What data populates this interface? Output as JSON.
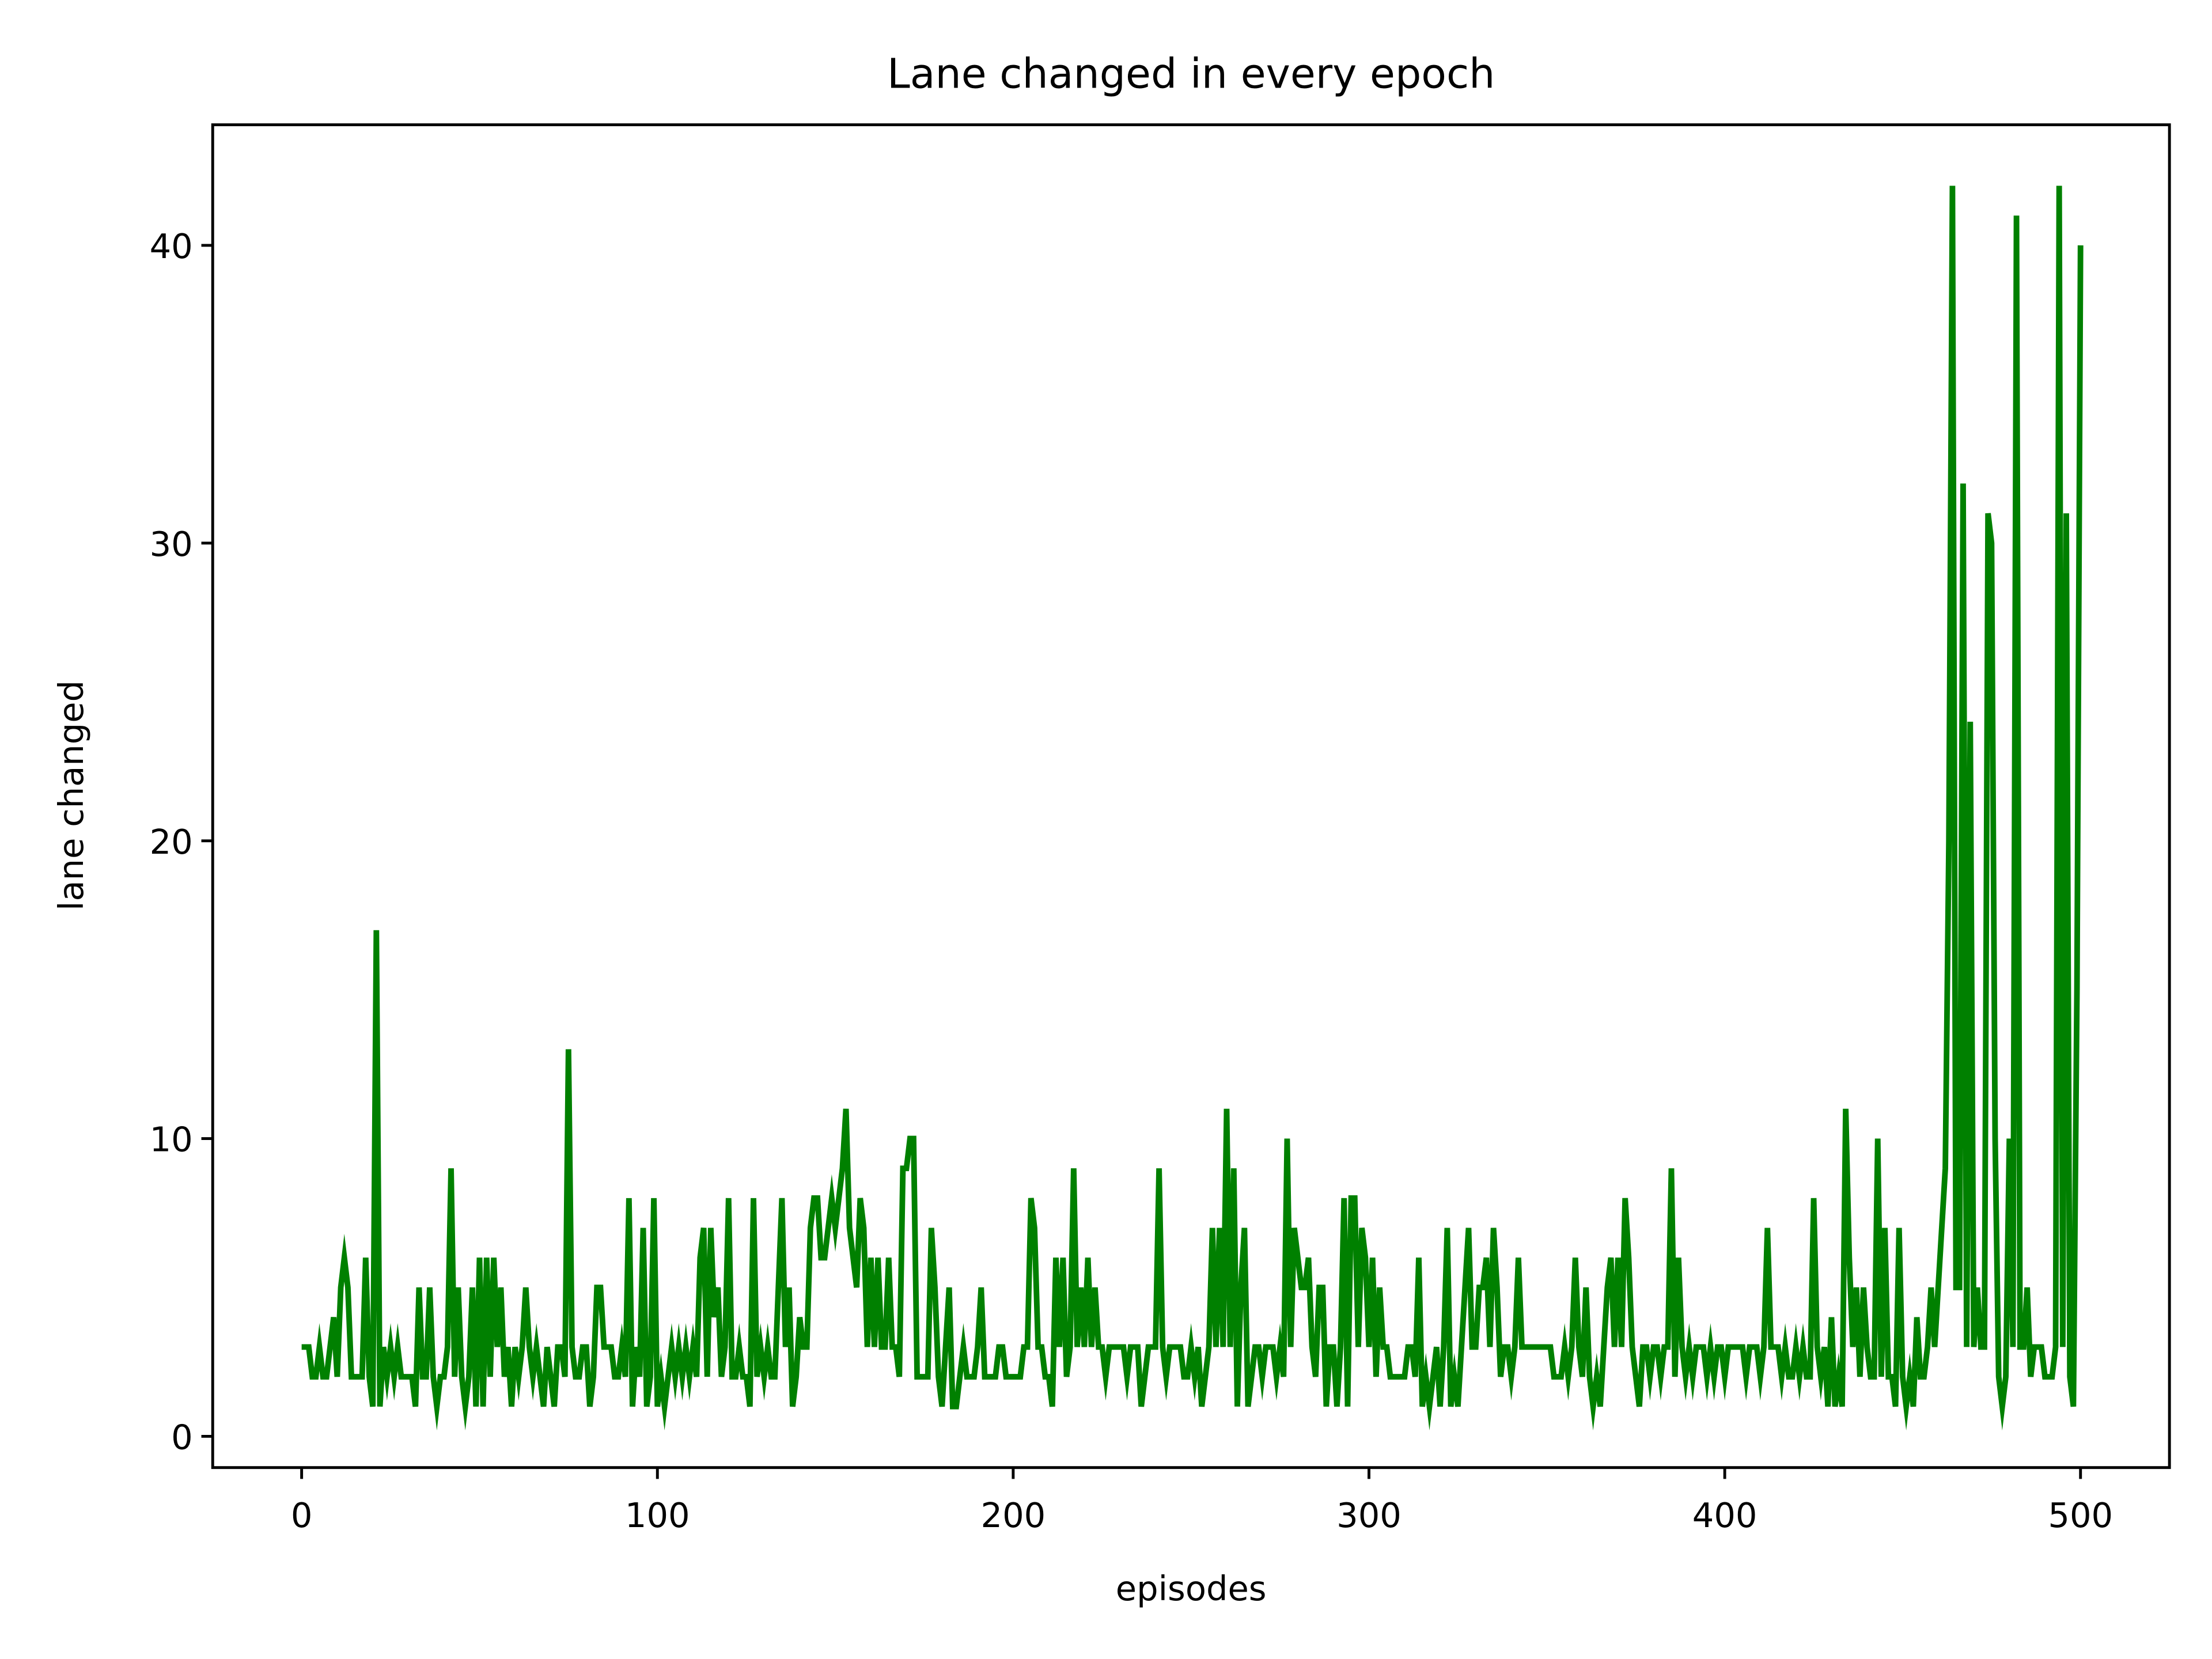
{
  "chart_data": {
    "type": "line",
    "title": "Lane changed in every epoch",
    "x_label": "episodes",
    "y_label": "lane changed",
    "color": "#008000",
    "xlim": [
      -25,
      525
    ],
    "xticks": [
      0,
      100,
      200,
      300,
      400,
      500
    ],
    "ylim": [
      -1.05,
      44.05
    ],
    "yticks": [
      0,
      10,
      20,
      30,
      40
    ],
    "x": [
      0,
      1,
      2,
      3,
      4,
      5,
      6,
      7,
      8,
      9,
      10,
      11,
      12,
      13,
      14,
      15,
      16,
      17,
      18,
      19,
      20,
      21,
      22,
      23,
      24,
      25,
      26,
      27,
      28,
      29,
      30,
      31,
      32,
      33,
      34,
      35,
      36,
      37,
      38,
      39,
      40,
      41,
      42,
      43,
      44,
      45,
      46,
      47,
      48,
      49,
      50,
      51,
      52,
      53,
      54,
      55,
      56,
      57,
      58,
      59,
      60,
      61,
      62,
      63,
      64,
      65,
      66,
      67,
      68,
      69,
      70,
      71,
      72,
      73,
      74,
      75,
      76,
      77,
      78,
      79,
      80,
      81,
      82,
      83,
      84,
      85,
      86,
      87,
      88,
      89,
      90,
      91,
      92,
      93,
      94,
      95,
      96,
      97,
      98,
      99,
      100,
      101,
      102,
      103,
      104,
      105,
      106,
      107,
      108,
      109,
      110,
      111,
      112,
      113,
      114,
      115,
      116,
      117,
      118,
      119,
      120,
      121,
      122,
      123,
      124,
      125,
      126,
      127,
      128,
      129,
      130,
      131,
      132,
      133,
      134,
      135,
      136,
      137,
      138,
      139,
      140,
      141,
      142,
      143,
      144,
      145,
      146,
      147,
      148,
      149,
      150,
      151,
      152,
      153,
      154,
      155,
      156,
      157,
      158,
      159,
      160,
      161,
      162,
      163,
      164,
      165,
      166,
      167,
      168,
      169,
      170,
      171,
      172,
      173,
      174,
      175,
      176,
      177,
      178,
      179,
      180,
      181,
      182,
      183,
      184,
      185,
      186,
      187,
      188,
      189,
      190,
      191,
      192,
      193,
      194,
      195,
      196,
      197,
      198,
      199,
      200,
      201,
      202,
      203,
      204,
      205,
      206,
      207,
      208,
      209,
      210,
      211,
      212,
      213,
      214,
      215,
      216,
      217,
      218,
      219,
      220,
      221,
      222,
      223,
      224,
      225,
      226,
      227,
      228,
      229,
      230,
      231,
      232,
      233,
      234,
      235,
      236,
      237,
      238,
      239,
      240,
      241,
      242,
      243,
      244,
      245,
      246,
      247,
      248,
      249,
      250,
      251,
      252,
      253,
      254,
      255,
      256,
      257,
      258,
      259,
      260,
      261,
      262,
      263,
      264,
      265,
      266,
      267,
      268,
      269,
      270,
      271,
      272,
      273,
      274,
      275,
      276,
      277,
      278,
      279,
      280,
      281,
      282,
      283,
      284,
      285,
      286,
      287,
      288,
      289,
      290,
      291,
      292,
      293,
      294,
      295,
      296,
      297,
      298,
      299,
      300,
      301,
      302,
      303,
      304,
      305,
      306,
      307,
      308,
      309,
      310,
      311,
      312,
      313,
      314,
      315,
      316,
      317,
      318,
      319,
      320,
      321,
      322,
      323,
      324,
      325,
      326,
      327,
      328,
      329,
      330,
      331,
      332,
      333,
      334,
      335,
      336,
      337,
      338,
      339,
      340,
      341,
      342,
      343,
      344,
      345,
      346,
      347,
      348,
      349,
      350,
      351,
      352,
      353,
      354,
      355,
      356,
      357,
      358,
      359,
      360,
      361,
      362,
      363,
      364,
      365,
      366,
      367,
      368,
      369,
      370,
      371,
      372,
      373,
      374,
      375,
      376,
      377,
      378,
      379,
      380,
      381,
      382,
      383,
      384,
      385,
      386,
      387,
      388,
      389,
      390,
      391,
      392,
      393,
      394,
      395,
      396,
      397,
      398,
      399,
      400,
      401,
      402,
      403,
      404,
      405,
      406,
      407,
      408,
      409,
      410,
      411,
      412,
      413,
      414,
      415,
      416,
      417,
      418,
      419,
      420,
      421,
      422,
      423,
      424,
      425,
      426,
      427,
      428,
      429,
      430,
      431,
      432,
      433,
      434,
      435,
      436,
      437,
      438,
      439,
      440,
      441,
      442,
      443,
      444,
      445,
      446,
      447,
      448,
      449,
      450,
      451,
      452,
      453,
      454,
      455,
      456,
      457,
      458,
      459,
      460,
      461,
      462,
      463,
      464,
      465,
      466,
      467,
      468,
      469,
      470,
      471,
      472,
      473,
      474,
      475,
      476,
      477,
      478,
      479,
      480,
      481,
      482,
      483,
      484,
      485,
      486,
      487,
      488,
      489,
      490,
      491,
      492,
      493,
      494,
      495,
      496,
      497,
      498,
      499,
      500
    ],
    "values": [
      3,
      3,
      3,
      2,
      2,
      3,
      2,
      2,
      3,
      4,
      2,
      5,
      6,
      5,
      2,
      2,
      2,
      2,
      6,
      2,
      1,
      17,
      1,
      3,
      2,
      3,
      2,
      3,
      2,
      2,
      2,
      2,
      1,
      5,
      2,
      2,
      5,
      2,
      1,
      2,
      2,
      3,
      9,
      2,
      5,
      2,
      1,
      2,
      5,
      1,
      6,
      1,
      6,
      2,
      6,
      3,
      5,
      2,
      3,
      1,
      3,
      2,
      3,
      5,
      3,
      2,
      3,
      2,
      1,
      3,
      2,
      1,
      3,
      3,
      2,
      13,
      3,
      2,
      2,
      3,
      3,
      1,
      2,
      5,
      5,
      3,
      3,
      3,
      2,
      2,
      3,
      2,
      8,
      1,
      3,
      2,
      7,
      1,
      2,
      8,
      1,
      2,
      1,
      2,
      3,
      2,
      3,
      2,
      3,
      2,
      3,
      2,
      6,
      7,
      2,
      7,
      4,
      5,
      2,
      3,
      8,
      2,
      2,
      3,
      2,
      2,
      1,
      8,
      2,
      3,
      2,
      3,
      2,
      2,
      5,
      8,
      3,
      5,
      1,
      2,
      4,
      3,
      3,
      7,
      8,
      8,
      6,
      6,
      7,
      8,
      7,
      8,
      9,
      11,
      7,
      6,
      5,
      8,
      7,
      3,
      6,
      3,
      6,
      3,
      3,
      6,
      3,
      3,
      2,
      9,
      9,
      10,
      10,
      2,
      2,
      2,
      2,
      7,
      5,
      2,
      1,
      3,
      5,
      1,
      1,
      2,
      3,
      2,
      2,
      2,
      3,
      5,
      2,
      2,
      2,
      2,
      3,
      3,
      2,
      2,
      2,
      2,
      2,
      3,
      3,
      8,
      7,
      3,
      3,
      2,
      2,
      1,
      6,
      3,
      6,
      2,
      3,
      9,
      3,
      5,
      3,
      6,
      3,
      5,
      3,
      3,
      2,
      3,
      3,
      3,
      3,
      3,
      2,
      3,
      3,
      3,
      1,
      2,
      3,
      3,
      3,
      9,
      3,
      2,
      3,
      3,
      3,
      3,
      2,
      2,
      3,
      2,
      3,
      1,
      2,
      3,
      7,
      3,
      7,
      3,
      11,
      3,
      9,
      1,
      5,
      7,
      1,
      2,
      3,
      3,
      2,
      3,
      3,
      3,
      2,
      3,
      2,
      10,
      3,
      7,
      6,
      5,
      5,
      6,
      3,
      2,
      5,
      5,
      1,
      3,
      3,
      1,
      3,
      8,
      1,
      8,
      8,
      3,
      7,
      6,
      3,
      6,
      2,
      5,
      3,
      3,
      2,
      2,
      2,
      2,
      2,
      3,
      3,
      2,
      6,
      1,
      2,
      1,
      2,
      3,
      1,
      3,
      7,
      1,
      2,
      1,
      3,
      5,
      7,
      3,
      3,
      5,
      5,
      6,
      3,
      7,
      5,
      2,
      3,
      3,
      2,
      3,
      6,
      3,
      3,
      3,
      3,
      3,
      3,
      3,
      3,
      3,
      2,
      2,
      2,
      3,
      2,
      3,
      6,
      3,
      2,
      5,
      2,
      1,
      2,
      1,
      3,
      5,
      6,
      3,
      6,
      3,
      8,
      6,
      3,
      2,
      1,
      3,
      3,
      2,
      3,
      3,
      2,
      3,
      3,
      9,
      2,
      6,
      3,
      2,
      3,
      2,
      3,
      3,
      3,
      2,
      3,
      2,
      3,
      3,
      2,
      3,
      3,
      3,
      3,
      3,
      2,
      3,
      3,
      3,
      2,
      3,
      7,
      3,
      3,
      3,
      2,
      3,
      2,
      2,
      3,
      2,
      3,
      2,
      2,
      8,
      3,
      2,
      3,
      1,
      4,
      1,
      2,
      1,
      11,
      6,
      3,
      5,
      2,
      5,
      3,
      2,
      2,
      10,
      2,
      7,
      2,
      2,
      1,
      7,
      2,
      1,
      2,
      1,
      4,
      2,
      2,
      3,
      5,
      3,
      5,
      7,
      9,
      20,
      42,
      5,
      5,
      32,
      3,
      24,
      3,
      5,
      3,
      3,
      31,
      30,
      10,
      2,
      1,
      2,
      10,
      3,
      41,
      3,
      3,
      5,
      2,
      3,
      3,
      3,
      2,
      2,
      2,
      3,
      42,
      3,
      31,
      2,
      1,
      15,
      40
    ]
  }
}
